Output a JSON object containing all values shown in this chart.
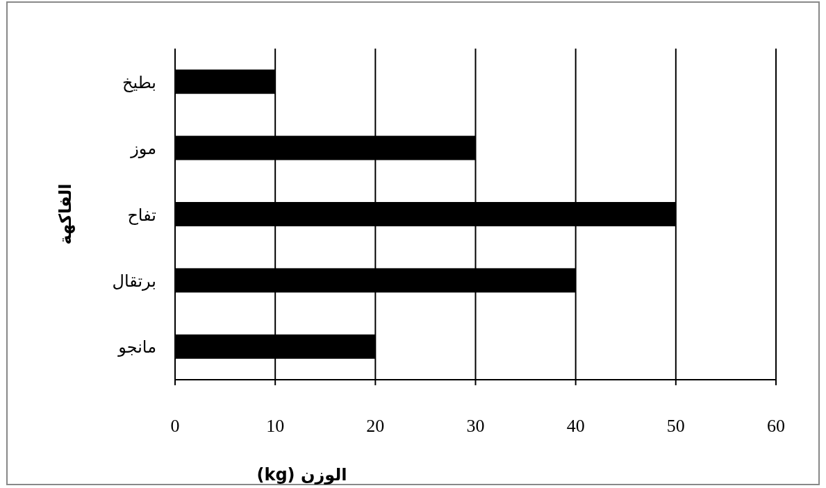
{
  "chart_data": {
    "type": "bar",
    "orientation": "horizontal",
    "xlabel": "الوزن (kg)",
    "ylabel": "الفاكهة",
    "categories": [
      "بطيخ",
      "موز",
      "تفاح",
      "برتقال",
      "مانجو"
    ],
    "values": [
      10,
      30,
      50,
      40,
      20
    ],
    "color": "#000000",
    "xlim": [
      0,
      60
    ],
    "xticks": [
      0,
      10,
      20,
      30,
      40,
      50,
      60
    ],
    "grid": "x"
  }
}
